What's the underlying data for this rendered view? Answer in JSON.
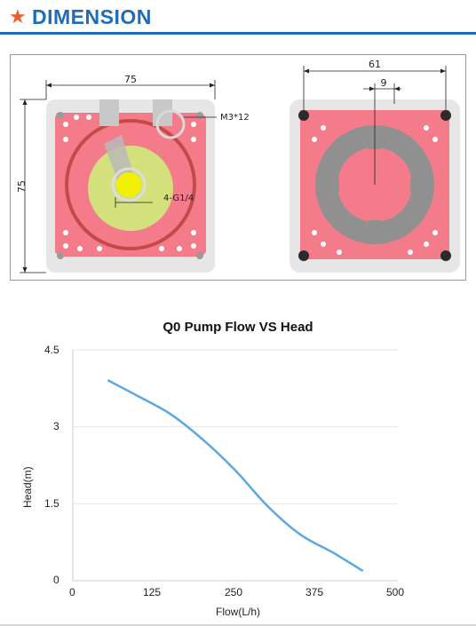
{
  "header": {
    "title": "DIMENSION",
    "star_glyph": "★",
    "accent_color": "#e8612c",
    "title_color": "#1e6db6",
    "rule_color": "#1e6db6"
  },
  "drawing": {
    "front_view": {
      "width_dim": "75",
      "height_dim": "75",
      "screw_label": "M3*12",
      "port_label": "4-G1/4",
      "plate_color": "#f47c8a",
      "body_color": "#e6e6e6",
      "impeller_color": "#d3e07c",
      "port_color": "#f0f000"
    },
    "back_view": {
      "width_dim": "61",
      "inner_dim": "9",
      "ring_color": "#909090"
    }
  },
  "chart_data": {
    "type": "line",
    "title": "Q0 Pump Flow VS Head",
    "xlabel": "Flow(L/h)",
    "ylabel": "Head(m)",
    "xlim": [
      0,
      500
    ],
    "ylim": [
      0,
      4.5
    ],
    "xticks": [
      "0",
      "125",
      "250",
      "375",
      "500"
    ],
    "yticks": [
      "0",
      "1.5",
      "3",
      "4.5"
    ],
    "grid": "horizontal",
    "series": [
      {
        "color": "#5aa8e0",
        "x": [
          55,
          100,
          150,
          200,
          250,
          300,
          350,
          400,
          445
        ],
        "y": [
          3.9,
          3.6,
          3.25,
          2.75,
          2.15,
          1.45,
          0.9,
          0.55,
          0.2
        ]
      }
    ]
  }
}
